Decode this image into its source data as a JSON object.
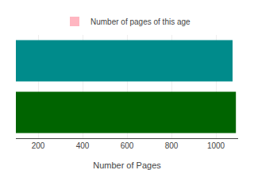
{
  "chart_data": {
    "type": "bar",
    "orientation": "horizontal",
    "categories": [
      null,
      null
    ],
    "series": [
      {
        "name": "Number of pages of this age",
        "color": "#ffb6c1",
        "colors": [
          "#008b8b",
          "#006400"
        ],
        "values": [
          1075,
          1090
        ]
      }
    ],
    "xlabel": "Number of Pages",
    "xlim": [
      100,
      1100
    ],
    "xticks": [
      200,
      400,
      600,
      800,
      1000
    ],
    "grid": true,
    "legend": "top",
    "tick_labels": "x"
  }
}
